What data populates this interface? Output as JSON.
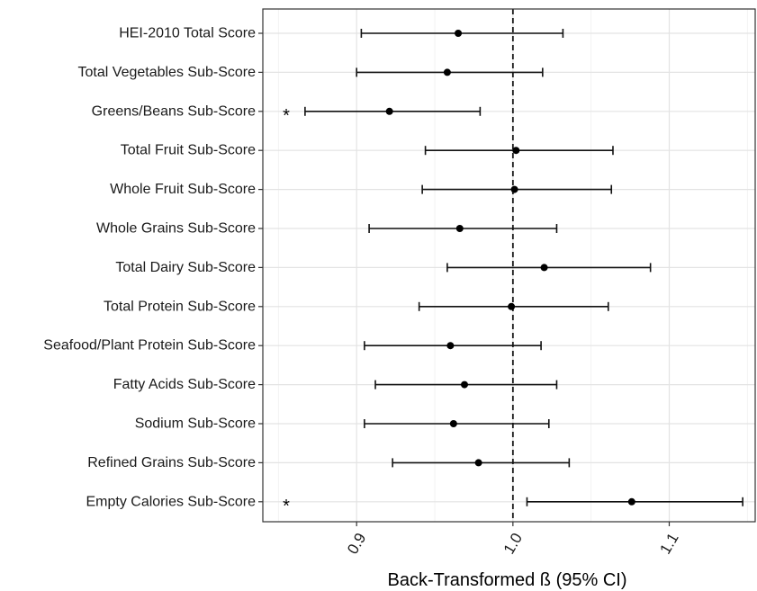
{
  "chart_data": {
    "type": "forest",
    "title": "",
    "xlabel": "Back-Transformed ß (95% CI)",
    "ylabel": "",
    "xlim": [
      0.84,
      1.155
    ],
    "xticks": [
      "0.9",
      "1.0",
      "1.1"
    ],
    "reference_line": 1.0,
    "grid": true,
    "rows": [
      {
        "label": "HEI-2010 Total Score",
        "estimate": 0.965,
        "lower": 0.903,
        "upper": 1.032,
        "annotation": ""
      },
      {
        "label": "Total Vegetables Sub-Score",
        "estimate": 0.958,
        "lower": 0.9,
        "upper": 1.019,
        "annotation": ""
      },
      {
        "label": "Greens/Beans Sub-Score",
        "estimate": 0.921,
        "lower": 0.867,
        "upper": 0.979,
        "annotation": "*"
      },
      {
        "label": "Total Fruit Sub-Score",
        "estimate": 1.002,
        "lower": 0.944,
        "upper": 1.064,
        "annotation": ""
      },
      {
        "label": "Whole Fruit Sub-Score",
        "estimate": 1.001,
        "lower": 0.942,
        "upper": 1.063,
        "annotation": ""
      },
      {
        "label": "Whole Grains Sub-Score",
        "estimate": 0.966,
        "lower": 0.908,
        "upper": 1.028,
        "annotation": ""
      },
      {
        "label": "Total Dairy Sub-Score",
        "estimate": 1.02,
        "lower": 0.958,
        "upper": 1.088,
        "annotation": ""
      },
      {
        "label": "Total Protein Sub-Score",
        "estimate": 0.999,
        "lower": 0.94,
        "upper": 1.061,
        "annotation": ""
      },
      {
        "label": "Seafood/Plant Protein Sub-Score",
        "estimate": 0.96,
        "lower": 0.905,
        "upper": 1.018,
        "annotation": ""
      },
      {
        "label": "Fatty Acids Sub-Score",
        "estimate": 0.969,
        "lower": 0.912,
        "upper": 1.028,
        "annotation": ""
      },
      {
        "label": "Sodium Sub-Score",
        "estimate": 0.962,
        "lower": 0.905,
        "upper": 1.023,
        "annotation": ""
      },
      {
        "label": "Refined Grains Sub-Score",
        "estimate": 0.978,
        "lower": 0.923,
        "upper": 1.036,
        "annotation": ""
      },
      {
        "label": "Empty Calories Sub-Score",
        "estimate": 1.076,
        "lower": 1.009,
        "upper": 1.147,
        "annotation": "*"
      }
    ]
  }
}
